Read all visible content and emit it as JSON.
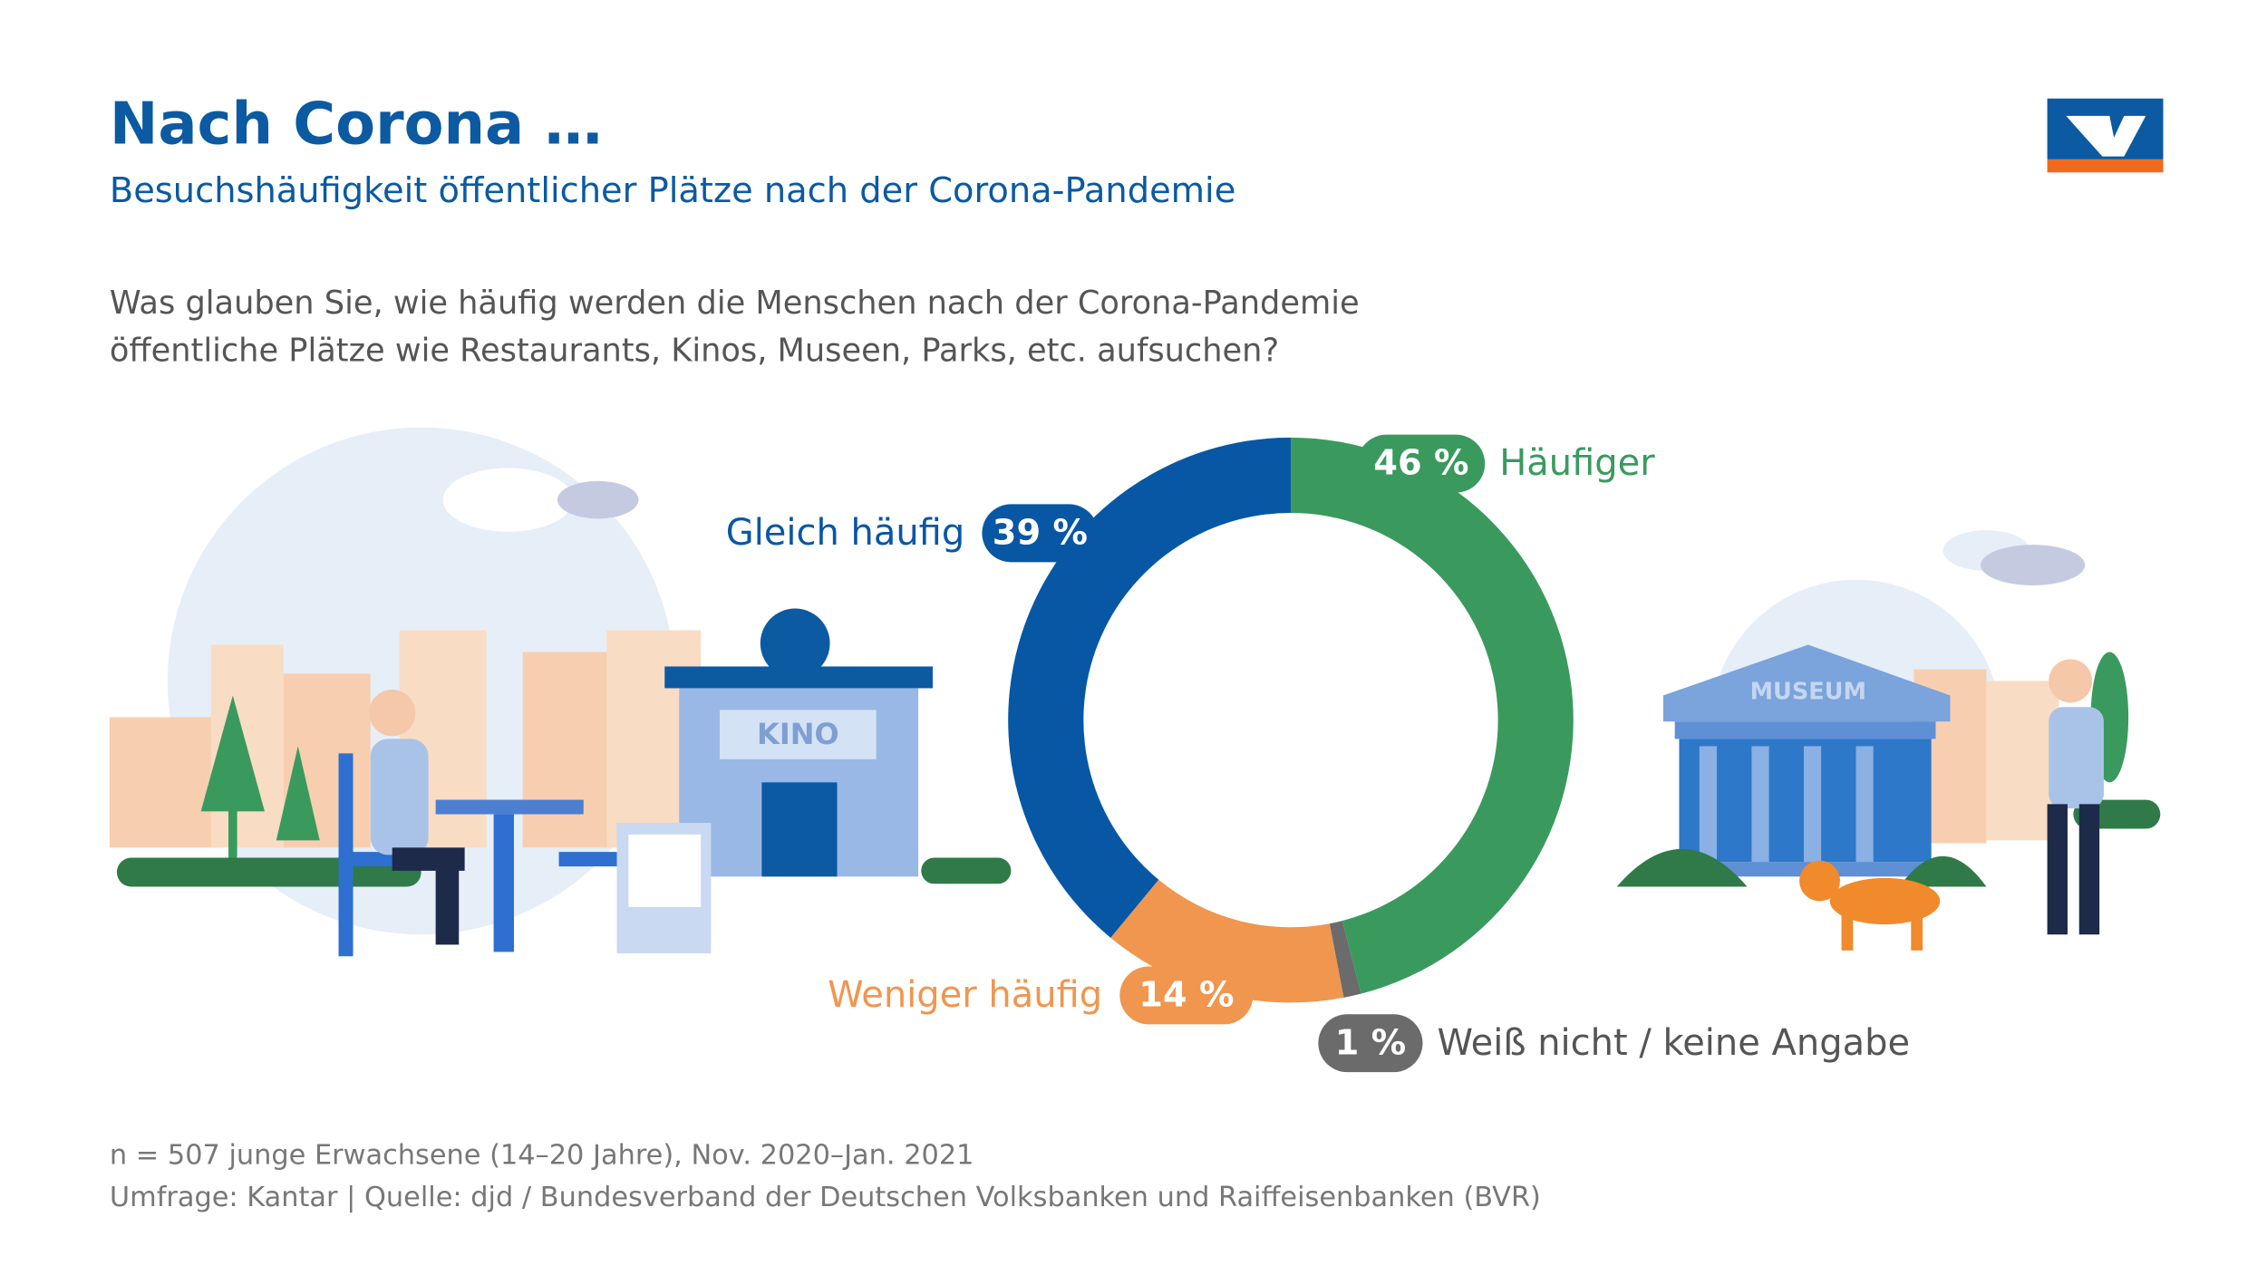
{
  "chart_data": {
    "type": "donut",
    "title": "Nach Corona …",
    "subtitle": "Besuchshäufigkeit öffentlicher Plätze nach der Corona-Pandemie",
    "question": [
      "Was glauben Sie, wie häufig werden die Menschen nach der Corona-Pandemie",
      "öffentliche Plätze wie Restaurants, Kinos, Museen, Parks, etc. aufsuchen?"
    ],
    "categories": [
      "Häufiger",
      "Weiß nicht / keine Angabe",
      "Weniger häufig",
      "Gleich häufig"
    ],
    "values": [
      46,
      1,
      14,
      39
    ],
    "value_labels": [
      "46 %",
      "1 %",
      "14 %",
      "39 %"
    ],
    "colors": [
      "#3a9a5e",
      "#6b6b6b",
      "#f0964e",
      "#0757a5"
    ],
    "notes": [
      "n = 507 junge Erwachsene (14–20 Jahre), Nov. 2020–Jan. 2021",
      "Umfrage: Kantar | Quelle: djd / Bundesverband der Deutschen Volksbanken und Raiffeisenbanken (BVR)"
    ],
    "illustration_labels": [
      "KINO",
      "MUSEUM"
    ]
  }
}
